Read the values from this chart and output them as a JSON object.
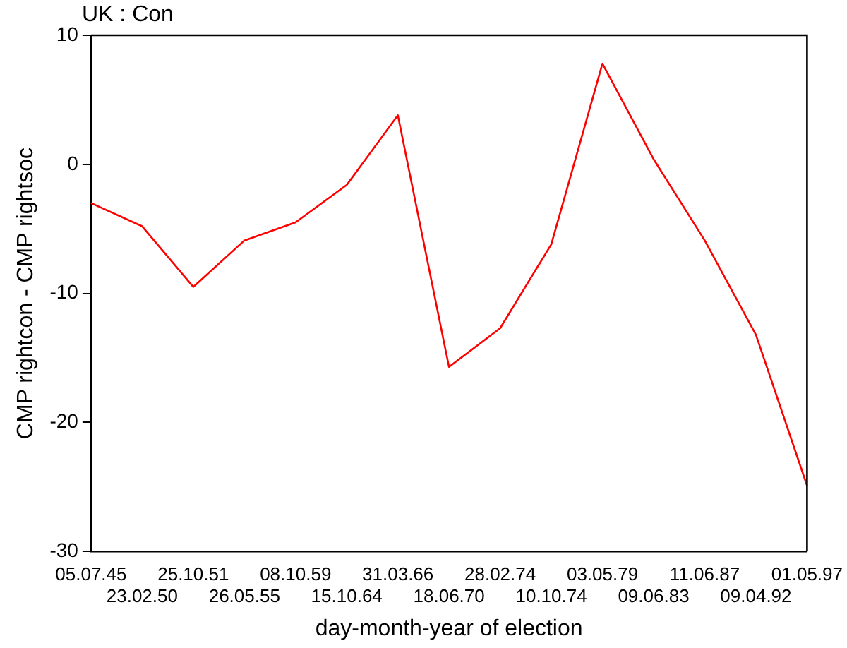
{
  "chart_data": {
    "type": "line",
    "title": "UK : Con",
    "xlabel": "day-month-year of election",
    "ylabel": "CMP rightcon - CMP rightsoc",
    "categories": [
      "05.07.45",
      "23.02.50",
      "25.10.51",
      "26.05.55",
      "08.10.59",
      "15.10.64",
      "31.03.66",
      "18.06.70",
      "28.02.74",
      "10.10.74",
      "03.05.79",
      "09.06.83",
      "11.06.87",
      "09.04.92",
      "01.05.97"
    ],
    "series": [
      {
        "color": "#ff0000",
        "values": [
          -3.0,
          -4.8,
          -9.5,
          -5.9,
          -4.5,
          -1.6,
          3.8,
          -15.7,
          -12.7,
          -6.2,
          7.8,
          0.4,
          -5.9,
          -13.2,
          -24.9
        ]
      }
    ],
    "ylim": [
      -30,
      10
    ],
    "yticks": [
      -30,
      -20,
      -10,
      0,
      10
    ],
    "grid": false,
    "legend": false,
    "marker": "none",
    "line_style": "solid"
  }
}
